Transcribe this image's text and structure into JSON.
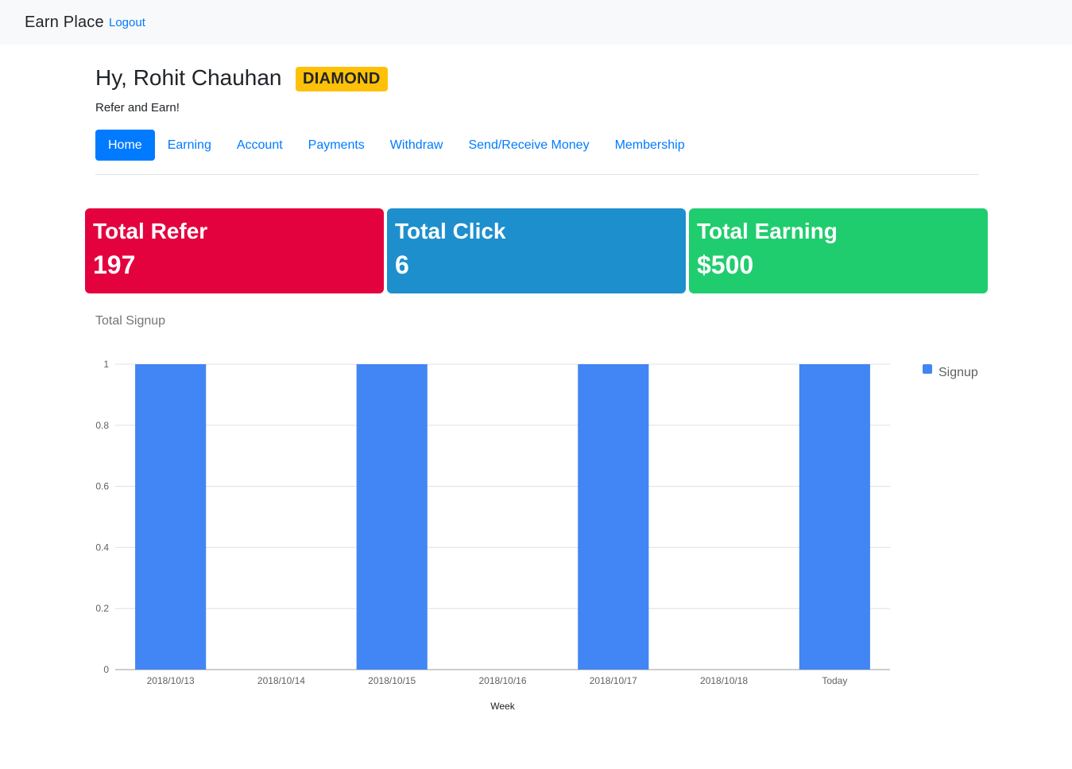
{
  "navbar": {
    "brand": "Earn Place",
    "logout": "Logout"
  },
  "header": {
    "greeting": "Hy, Rohit Chauhan",
    "badge": "DIAMOND",
    "subtitle": "Refer and Earn!"
  },
  "tabs": [
    {
      "label": "Home",
      "active": true
    },
    {
      "label": "Earning",
      "active": false
    },
    {
      "label": "Account",
      "active": false
    },
    {
      "label": "Payments",
      "active": false
    },
    {
      "label": "Withdraw",
      "active": false
    },
    {
      "label": "Send/Receive Money",
      "active": false
    },
    {
      "label": "Membership",
      "active": false
    }
  ],
  "cards": [
    {
      "label": "Total Refer",
      "value": "197",
      "color": "#e4023e"
    },
    {
      "label": "Total Click",
      "value": "6",
      "color": "#1e8fcd"
    },
    {
      "label": "Total Earning",
      "value": "$500",
      "color": "#20cd6e"
    }
  ],
  "chart": {
    "title": "Total Signup"
  },
  "chart_data": {
    "type": "bar",
    "categories": [
      "2018/10/13",
      "2018/10/14",
      "2018/10/15",
      "2018/10/16",
      "2018/10/17",
      "2018/10/18",
      "Today"
    ],
    "series": [
      {
        "name": "Signup",
        "values": [
          1,
          0,
          1,
          0,
          1,
          0,
          1
        ],
        "color": "#4285f4"
      }
    ],
    "xlabel": "Week",
    "ylabel": "",
    "ylim": [
      0,
      1
    ],
    "yticks": [
      "0",
      "0.2",
      "0.4",
      "0.6",
      "0.8",
      "1"
    ],
    "grid": true,
    "legend": "right"
  }
}
